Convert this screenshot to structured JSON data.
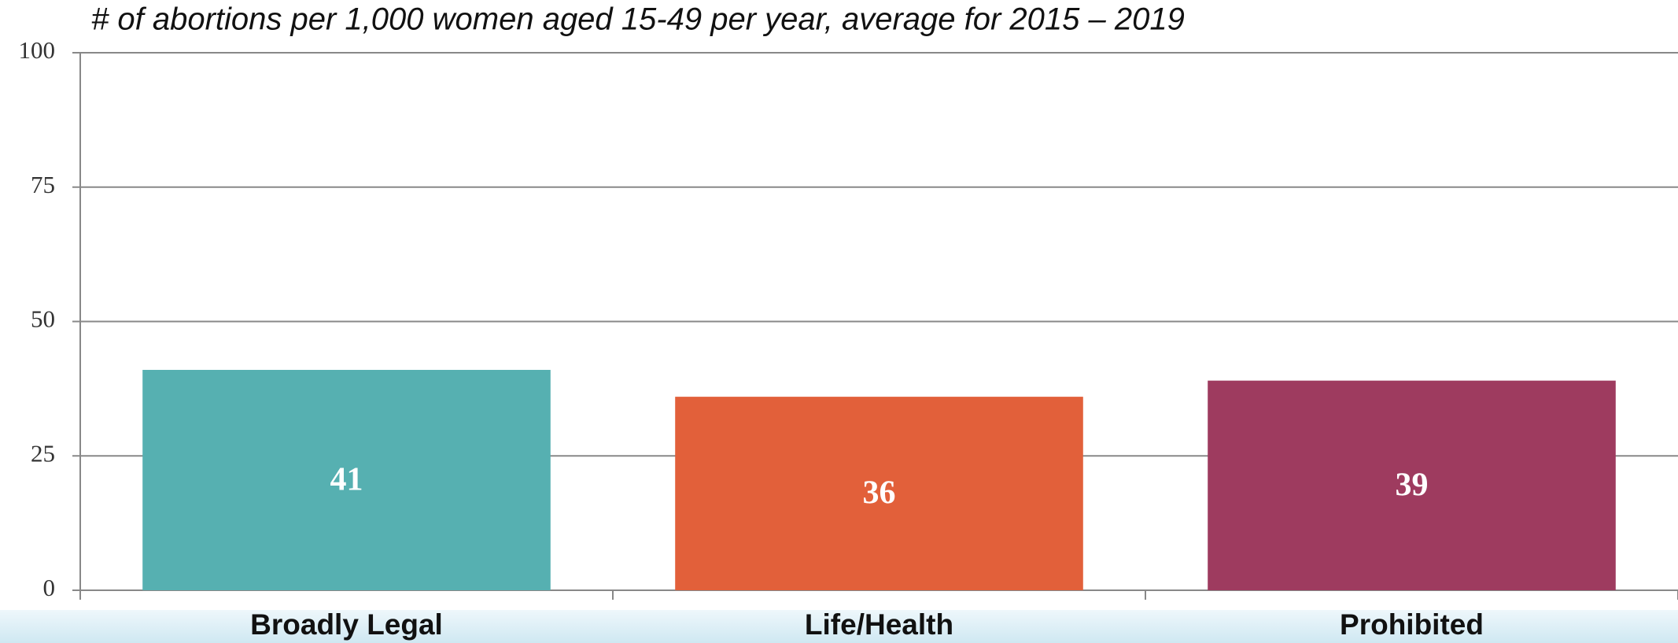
{
  "chart_data": {
    "type": "bar",
    "title": "# of abortions per 1,000 women aged 15-49 per year, average for 2015 – 2019",
    "categories": [
      "Broadly Legal",
      "Life/Health",
      "Prohibited"
    ],
    "values": [
      41,
      36,
      39
    ],
    "colors": [
      "#56b0b1",
      "#e2603a",
      "#9e3b5f"
    ],
    "ylim": [
      0,
      100
    ],
    "yticks": [
      0,
      25,
      50,
      75,
      100
    ],
    "grid": true
  }
}
